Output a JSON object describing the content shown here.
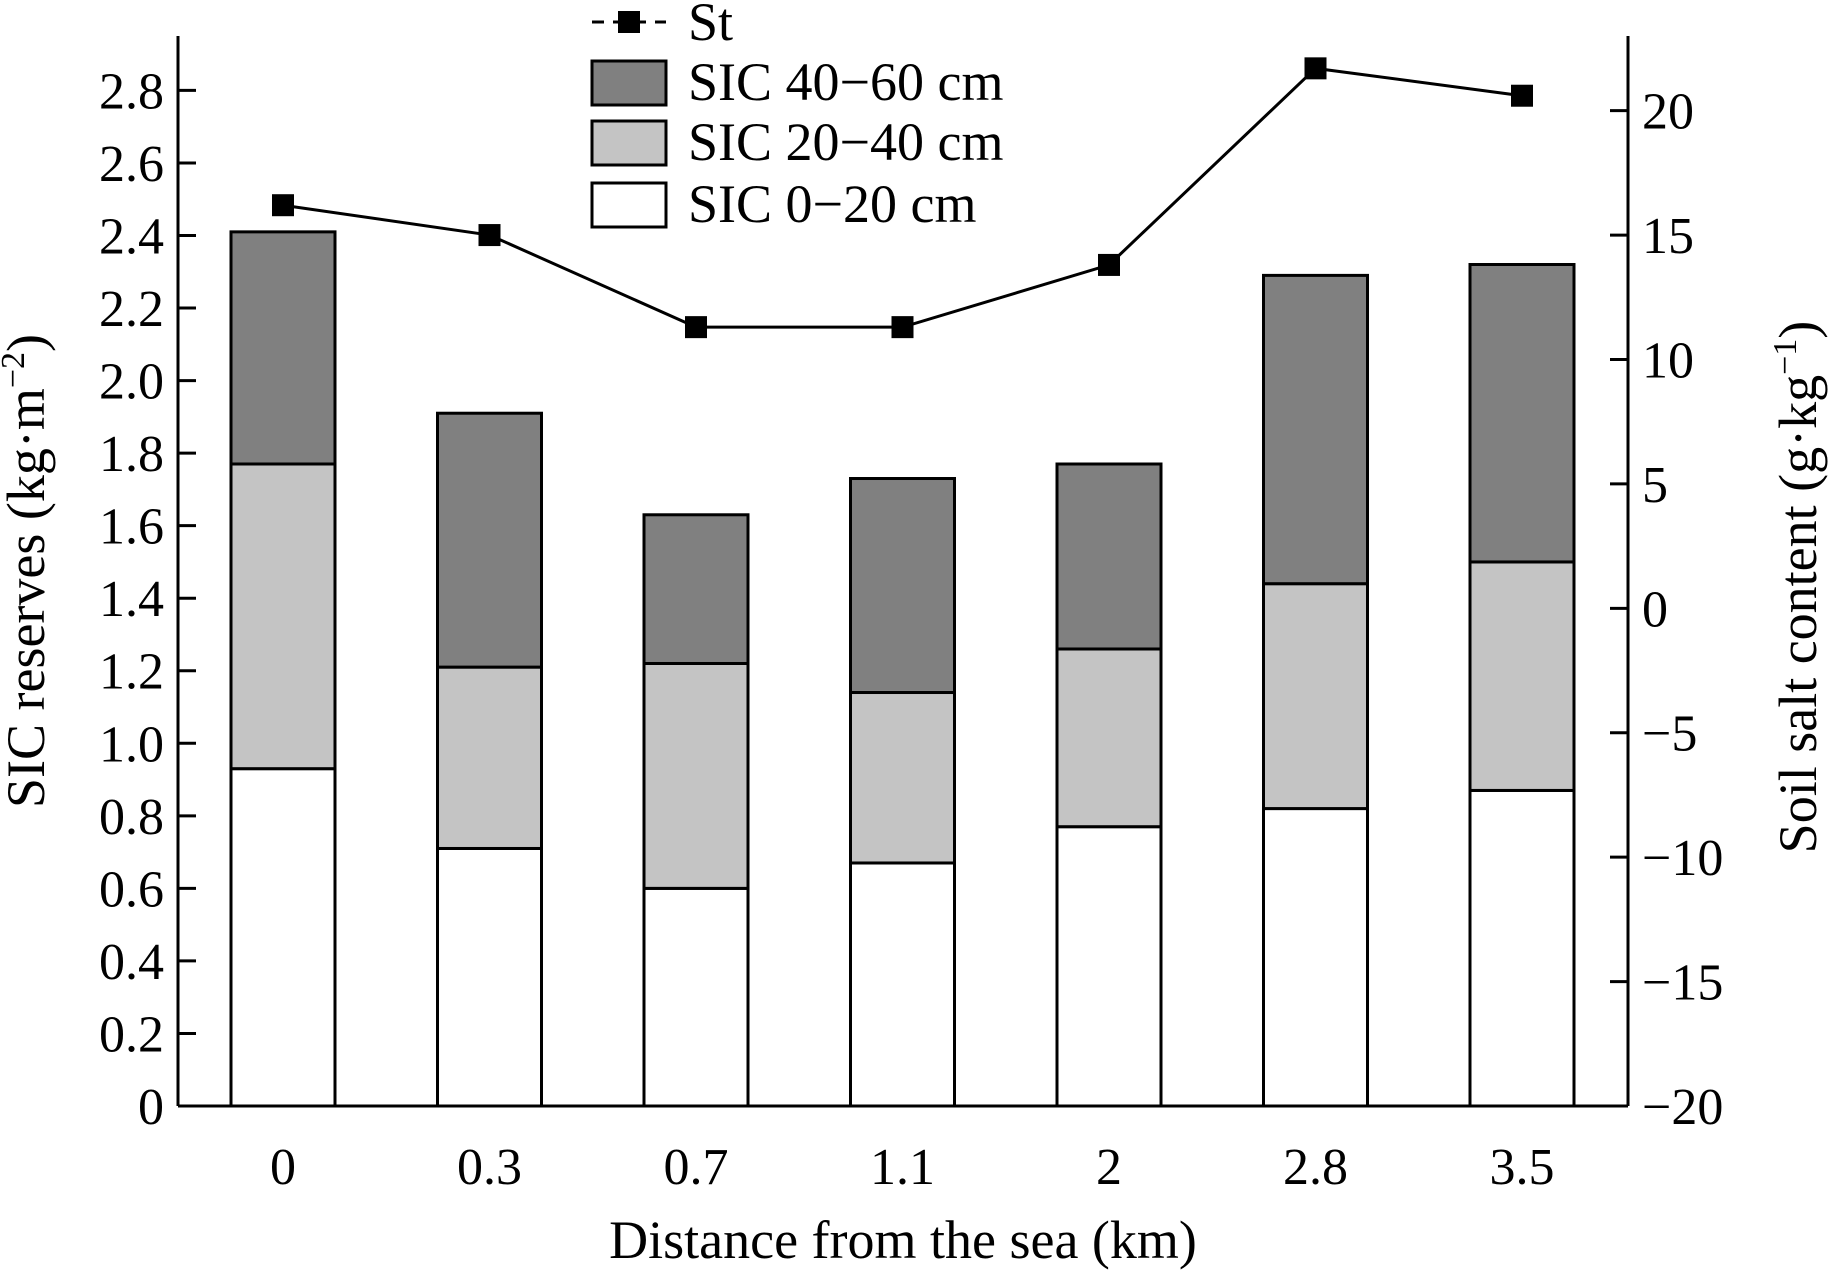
{
  "chart_data": {
    "type": "bar",
    "stacked": true,
    "dual_axis": true,
    "categories": [
      "0",
      "0.3",
      "0.7",
      "1.1",
      "2",
      "2.8",
      "3.5"
    ],
    "xlabel": "Distance from the sea (km)",
    "ylabel_left": {
      "text": "SIC reserves (kg·m",
      "superscript": "−2",
      "suffix": ")"
    },
    "ylabel_right": {
      "text": "Soil salt content (g·kg",
      "superscript": "−1",
      "suffix": ")"
    },
    "ylim_left": [
      0,
      2.95
    ],
    "ylim_right": [
      -20,
      23
    ],
    "yticks_left": [
      "0",
      "0.2",
      "0.4",
      "0.6",
      "0.8",
      "1.0",
      "1.2",
      "1.4",
      "1.6",
      "1.8",
      "2.0",
      "2.2",
      "2.4",
      "2.6",
      "2.8"
    ],
    "yticks_right": [
      "−20",
      "−15",
      "−10",
      "−5",
      "0",
      "5",
      "10",
      "15",
      "20"
    ],
    "series": [
      {
        "name": "SIC 0−20 cm",
        "kind": "bar",
        "axis": "left",
        "color": "#ffffff",
        "values": [
          0.93,
          0.71,
          0.6,
          0.67,
          0.77,
          0.82,
          0.87
        ]
      },
      {
        "name": "SIC 20−40 cm",
        "kind": "bar",
        "axis": "left",
        "color": "#c4c4c4",
        "values": [
          0.84,
          0.5,
          0.62,
          0.47,
          0.49,
          0.62,
          0.63
        ]
      },
      {
        "name": "SIC 40−60 cm",
        "kind": "bar",
        "axis": "left",
        "color": "#808080",
        "values": [
          0.64,
          0.7,
          0.41,
          0.59,
          0.51,
          0.85,
          0.82
        ]
      },
      {
        "name": "St",
        "kind": "line",
        "axis": "right",
        "marker": "square",
        "color": "#000000",
        "values": [
          16.2,
          15.0,
          11.3,
          11.3,
          13.8,
          21.7,
          20.6
        ]
      }
    ],
    "legend": {
      "position": "top-center",
      "order": [
        "St",
        "SIC 40−60 cm",
        "SIC 20−40 cm",
        "SIC 0−20 cm"
      ]
    },
    "grid": false
  }
}
